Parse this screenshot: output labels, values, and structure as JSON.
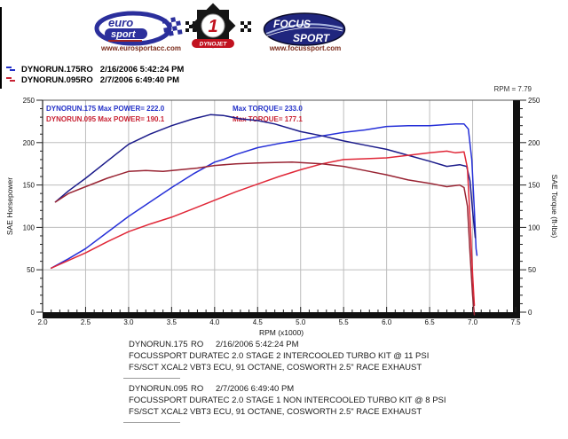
{
  "header": {
    "eurosport": {
      "word_top": "euro",
      "word_bottom": "sport",
      "url": "www.eurosportacc.com"
    },
    "dynojet": {
      "number": "1",
      "name": "DYNOJET"
    },
    "focussport": {
      "word_top": "FOCUS",
      "word_bottom": "SPORT",
      "url": "www.focussport.com"
    }
  },
  "legend": {
    "runs": [
      {
        "name": "DYNORUN.175RO",
        "datetime": "2/16/2006 5:42:24 PM",
        "color": "#2230c8"
      },
      {
        "name": "DYNORUN.095RO",
        "datetime": "2/7/2006 6:49:40 PM",
        "color": "#c82233"
      }
    ]
  },
  "chart_data": {
    "type": "line",
    "title": "",
    "xlabel": "RPM (x1000)",
    "ylabel_left": "SAE Horsepower",
    "ylabel_right": "SAE Torque (ft-lbs)",
    "rpm_readout": "RPM = 7.79",
    "xlim": [
      2.0,
      7.5
    ],
    "ylim": [
      0,
      250
    ],
    "grid": true,
    "xtick_labels": [
      "2.0",
      "2.5",
      "3.0",
      "3.5",
      "4.0",
      "4.5",
      "5.0",
      "5.5",
      "6.0",
      "6.5",
      "7.0",
      "7.5"
    ],
    "ytick_labels": [
      "0",
      "50",
      "100",
      "150",
      "200",
      "250"
    ],
    "annotations": [
      {
        "text": "DYNORUN.175  Max POWER= 222.0",
        "color": "#2230c8"
      },
      {
        "text": "DYNORUN.095  Max POWER= 190.1",
        "color": "#c82233"
      },
      {
        "text": "Max TORQUE= 233.0",
        "color": "#2230c8"
      },
      {
        "text": "Max TORQUE= 177.1",
        "color": "#c82233"
      }
    ],
    "series": [
      {
        "name": "DYNORUN.175 SAE Horsepower",
        "axis": "left",
        "color": "#2630d8",
        "points": [
          [
            2.1,
            52
          ],
          [
            2.3,
            63
          ],
          [
            2.5,
            75
          ],
          [
            2.75,
            94
          ],
          [
            3.0,
            113
          ],
          [
            3.25,
            130
          ],
          [
            3.5,
            147
          ],
          [
            3.75,
            163
          ],
          [
            4.0,
            177
          ],
          [
            4.1,
            180
          ],
          [
            4.25,
            186
          ],
          [
            4.5,
            194
          ],
          [
            4.75,
            199
          ],
          [
            5.0,
            203
          ],
          [
            5.25,
            208
          ],
          [
            5.5,
            212
          ],
          [
            5.75,
            215
          ],
          [
            6.0,
            219
          ],
          [
            6.25,
            220
          ],
          [
            6.5,
            220
          ],
          [
            6.65,
            221
          ],
          [
            6.8,
            222
          ],
          [
            6.9,
            222
          ],
          [
            6.95,
            216
          ],
          [
            6.99,
            180
          ],
          [
            7.02,
            120
          ],
          [
            7.04,
            75
          ],
          [
            7.05,
            67
          ]
        ]
      },
      {
        "name": "DYNORUN.175 SAE Torque",
        "axis": "right",
        "color": "#1b1b8a",
        "points": [
          [
            2.15,
            130
          ],
          [
            2.3,
            143
          ],
          [
            2.5,
            158
          ],
          [
            2.75,
            178
          ],
          [
            3.0,
            198
          ],
          [
            3.25,
            210
          ],
          [
            3.5,
            220
          ],
          [
            3.75,
            228
          ],
          [
            3.95,
            233
          ],
          [
            4.1,
            232
          ],
          [
            4.3,
            228
          ],
          [
            4.5,
            226
          ],
          [
            4.7,
            222
          ],
          [
            5.0,
            213
          ],
          [
            5.25,
            208
          ],
          [
            5.5,
            202
          ],
          [
            5.75,
            197
          ],
          [
            6.0,
            192
          ],
          [
            6.25,
            185
          ],
          [
            6.5,
            178
          ],
          [
            6.7,
            172
          ],
          [
            6.85,
            174
          ],
          [
            6.93,
            172
          ],
          [
            6.97,
            155
          ],
          [
            7.0,
            120
          ],
          [
            7.03,
            88
          ]
        ]
      },
      {
        "name": "DYNORUN.095 SAE Horsepower",
        "axis": "left",
        "color": "#e02838",
        "points": [
          [
            2.1,
            52
          ],
          [
            2.3,
            61
          ],
          [
            2.5,
            70
          ],
          [
            2.75,
            83
          ],
          [
            3.0,
            95
          ],
          [
            3.25,
            104
          ],
          [
            3.5,
            112
          ],
          [
            3.75,
            122
          ],
          [
            4.0,
            132
          ],
          [
            4.25,
            142
          ],
          [
            4.5,
            151
          ],
          [
            4.75,
            160
          ],
          [
            5.0,
            168
          ],
          [
            5.25,
            175
          ],
          [
            5.5,
            180
          ],
          [
            5.75,
            181
          ],
          [
            6.0,
            182
          ],
          [
            6.25,
            185
          ],
          [
            6.5,
            188
          ],
          [
            6.7,
            190
          ],
          [
            6.8,
            188
          ],
          [
            6.9,
            189
          ],
          [
            6.94,
            170
          ],
          [
            6.97,
            110
          ],
          [
            7.0,
            45
          ],
          [
            7.02,
            8
          ]
        ]
      },
      {
        "name": "DYNORUN.095 SAE Torque",
        "axis": "right",
        "color": "#992433",
        "points": [
          [
            2.15,
            130
          ],
          [
            2.3,
            140
          ],
          [
            2.5,
            148
          ],
          [
            2.75,
            158
          ],
          [
            3.0,
            166
          ],
          [
            3.2,
            167
          ],
          [
            3.4,
            166
          ],
          [
            3.6,
            168
          ],
          [
            3.8,
            170
          ],
          [
            4.0,
            173
          ],
          [
            4.25,
            175
          ],
          [
            4.5,
            176
          ],
          [
            4.9,
            177
          ],
          [
            5.25,
            175
          ],
          [
            5.5,
            172
          ],
          [
            5.75,
            167
          ],
          [
            6.0,
            162
          ],
          [
            6.25,
            156
          ],
          [
            6.5,
            152
          ],
          [
            6.7,
            148
          ],
          [
            6.85,
            150
          ],
          [
            6.9,
            147
          ],
          [
            6.94,
            125
          ],
          [
            6.97,
            70
          ],
          [
            7.0,
            20
          ],
          [
            7.02,
            -3
          ]
        ]
      }
    ]
  },
  "footer": {
    "blocks": [
      {
        "name": "DYNORUN.175",
        "ro": "RO",
        "datetime": "2/16/2006 5:42:24 PM",
        "line2": "FOCUSSPORT DURATEC 2.0 STAGE 2 INTERCOOLED TURBO KIT @ 11 PSI",
        "line3": "FS/SCT XCAL2 VBT3 ECU, 91 OCTANE, COSWORTH 2.5\" RACE EXHAUST"
      },
      {
        "name": "DYNORUN.095",
        "ro": "RO",
        "datetime": "2/7/2006 6:49:40 PM",
        "line2": "FOCUSSPORT DURATEC 2.0 STAGE 1 NON INTERCOOLED TURBO KIT @ 8 PSI",
        "line3": "FS/SCT XCAL2 VBT3 ECU, 91 OCTANE, COSWORTH 2.5\" RACE EXHAUST"
      }
    ]
  }
}
